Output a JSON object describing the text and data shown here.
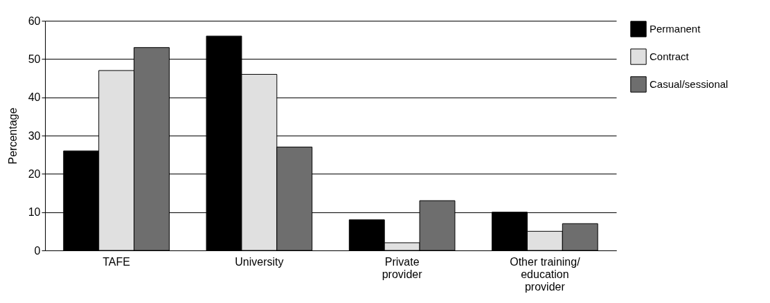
{
  "chart_data": {
    "type": "bar",
    "ylabel": "Percentage",
    "categories": [
      "TAFE",
      "University",
      "Private provider",
      "Other training/education provider"
    ],
    "series": [
      {
        "name": "Permanent",
        "color": "#000000",
        "values": [
          26,
          56,
          8,
          10
        ]
      },
      {
        "name": "Contract",
        "color": "#e0e0e0",
        "values": [
          47,
          46,
          2,
          5
        ]
      },
      {
        "name": "Casual/sessional",
        "color": "#6e6e6e",
        "values": [
          53,
          27,
          13,
          7
        ]
      }
    ],
    "ylim": [
      0,
      60
    ],
    "yticks": [
      0,
      10,
      20,
      30,
      40,
      50,
      60
    ],
    "grid": "y",
    "legend": "top right"
  }
}
